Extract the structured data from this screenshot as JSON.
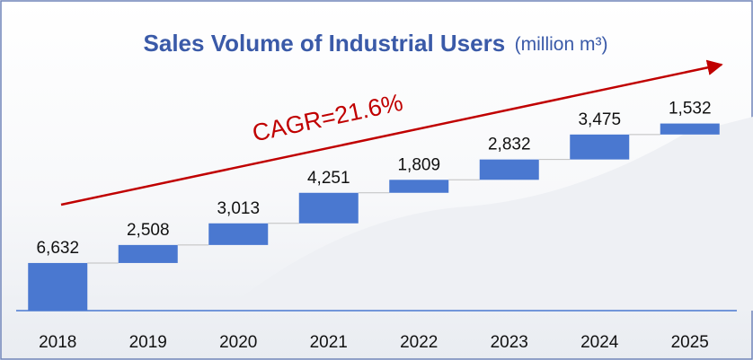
{
  "chart_data": {
    "type": "waterfall",
    "title": "Sales Volume of Industrial Users",
    "unit": "(million m³)",
    "annotation": "CAGR=21.6%",
    "annotation_color": "#c00000",
    "categories": [
      "2018",
      "2019",
      "2020",
      "2021",
      "2022",
      "2023",
      "2024",
      "2025"
    ],
    "values": [
      6632,
      2508,
      3013,
      4251,
      1809,
      2832,
      3475,
      1532
    ],
    "value_labels": [
      "6,632",
      "2,508",
      "3,013",
      "4,251",
      "1,809",
      "2,832",
      "3,475",
      "1,532"
    ],
    "color": "#4a78d0",
    "ylim": [
      0,
      26000
    ]
  }
}
